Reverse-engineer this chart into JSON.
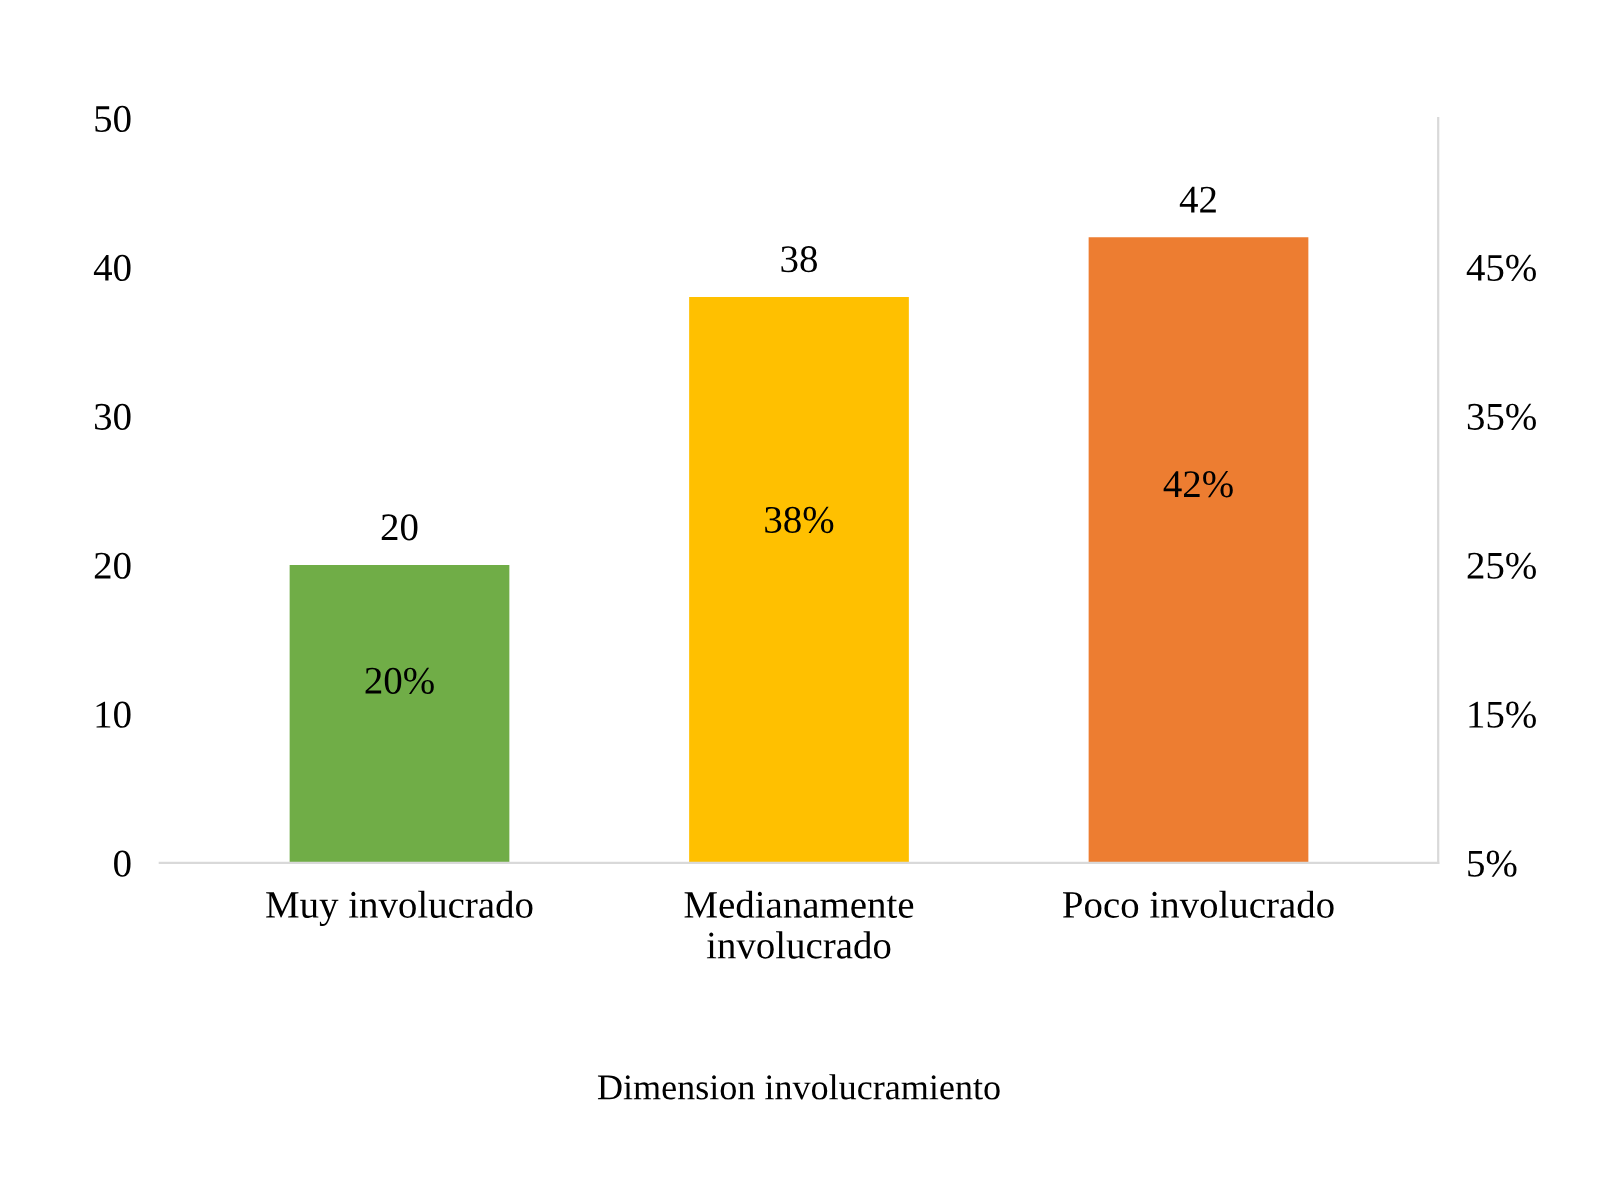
{
  "chart_data": {
    "type": "bar",
    "xlabel": "Dimension involucramiento",
    "categories": [
      "Muy involucrado",
      "Medianamente\ninvolucrado",
      "Poco involucrado"
    ],
    "values": [
      20,
      38,
      42
    ],
    "colors": [
      "#70ad47",
      "#ffc000",
      "#ed7d31"
    ],
    "data_labels": true,
    "ylim": [
      0,
      50
    ],
    "yticks": [
      0,
      10,
      20,
      30,
      40,
      50
    ],
    "y2lim": [
      5,
      55
    ],
    "y2ticks": [
      {
        "value": 5,
        "label": "5%"
      },
      {
        "value": 15,
        "label": "15%"
      },
      {
        "value": 25,
        "label": "25%"
      },
      {
        "value": 35,
        "label": "35%"
      },
      {
        "value": 45,
        "label": "45%"
      }
    ],
    "annotations": [
      "20%",
      "38%",
      "42%"
    ],
    "grid": false,
    "legend": false
  }
}
